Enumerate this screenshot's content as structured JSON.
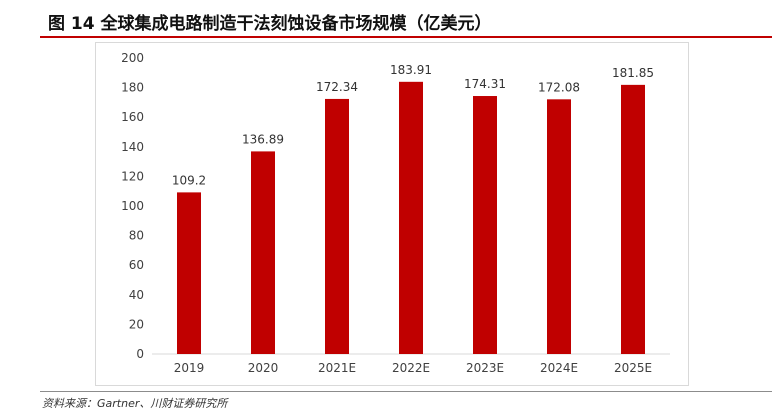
{
  "figure_title": "图 14 全球集成电路制造干法刻蚀设备市场规模（亿美元）",
  "source_note": "资料来源：Gartner、川财证券研究所",
  "colors": {
    "bar": "#c00000",
    "rule": "#c00000",
    "axis_text": "#404040"
  },
  "chart_data": {
    "type": "bar",
    "title": "",
    "xlabel": "",
    "ylabel": "",
    "categories": [
      "2019",
      "2020",
      "2021E",
      "2022E",
      "2023E",
      "2024E",
      "2025E"
    ],
    "values": [
      109.2,
      136.89,
      172.34,
      183.91,
      174.31,
      172.08,
      181.85
    ],
    "data_labels": [
      "109.2",
      "136.89",
      "172.34",
      "183.91",
      "174.31",
      "172.08",
      "181.85"
    ],
    "ylim": [
      0,
      200
    ],
    "yticks": [
      0,
      20,
      40,
      60,
      80,
      100,
      120,
      140,
      160,
      180,
      200
    ],
    "grid": false,
    "legend": "none"
  }
}
